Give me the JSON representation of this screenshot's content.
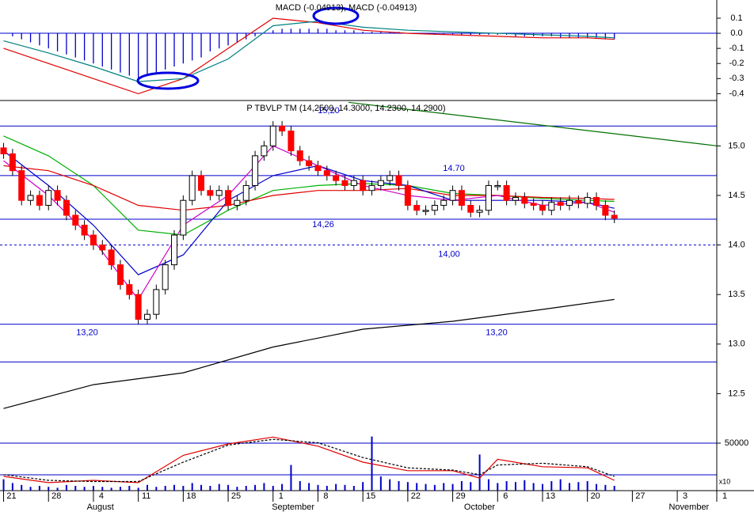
{
  "chart_data": [
    {
      "type": "bar",
      "title": "MACD (-0.04913), MACD (-0.04913)",
      "xlim": [
        -0.4,
        79.4
      ],
      "ylim": [
        -0.44,
        0.21
      ],
      "yticks": [
        0.1,
        {
          "value": 0,
          "label": "0.0"
        },
        -0.1,
        -0.2,
        -0.3,
        -0.4
      ],
      "color": "#0000cc",
      "values": [
        0.0,
        -0.02,
        -0.04,
        -0.06,
        -0.08,
        -0.1,
        -0.12,
        -0.14,
        -0.16,
        -0.18,
        -0.2,
        -0.22,
        -0.24,
        -0.26,
        -0.28,
        -0.3,
        -0.28,
        -0.26,
        -0.24,
        -0.22,
        -0.2,
        -0.18,
        -0.16,
        -0.12,
        -0.1,
        -0.08,
        -0.06,
        -0.04,
        -0.02,
        0.0,
        0.02,
        0.03,
        0.03,
        0.03,
        0.03,
        0.03,
        0.03,
        0.02,
        0.02,
        0.02,
        0.01,
        0.01,
        0.01,
        0.01,
        0.01,
        0.0,
        0.0,
        0.0,
        -0.01,
        -0.01,
        -0.01,
        -0.01,
        -0.01,
        -0.01,
        -0.01,
        -0.01,
        -0.01,
        -0.02,
        -0.02,
        -0.02,
        -0.02,
        -0.02,
        -0.03,
        -0.03,
        -0.03,
        -0.03,
        -0.03,
        -0.04,
        -0.04
      ],
      "series": [
        {
          "color": "#e00000",
          "x": [
            0,
            5,
            10,
            15,
            20,
            25,
            30,
            35,
            40,
            45,
            50,
            55,
            60,
            65,
            68
          ],
          "values": [
            -0.1,
            -0.2,
            -0.3,
            -0.4,
            -0.3,
            -0.1,
            0.1,
            0.07,
            0.02,
            0.0,
            -0.01,
            -0.02,
            -0.03,
            -0.03,
            -0.04
          ]
        },
        {
          "color": "#008080",
          "x": [
            0,
            5,
            10,
            15,
            20,
            25,
            30,
            35,
            40,
            45,
            50,
            55,
            60,
            65,
            68
          ],
          "values": [
            -0.05,
            -0.13,
            -0.22,
            -0.32,
            -0.3,
            -0.17,
            0.05,
            0.08,
            0.04,
            0.02,
            0.01,
            0.0,
            -0.01,
            -0.02,
            -0.03
          ]
        }
      ]
    },
    {
      "type": "candlestick",
      "title": "P TBVLP TM (14,2500, 14.3000, 14.2300, 14.2900)",
      "xlim": [
        -0.4,
        79.4
      ],
      "ylim": [
        12.0,
        15.45
      ],
      "yticks": [
        {
          "value": 15,
          "label": "15.0"
        },
        14.5,
        {
          "value": 14,
          "label": "14.0"
        },
        13.5,
        {
          "value": 13,
          "label": "13.0"
        },
        12.5
      ],
      "up_color": "#ffffff",
      "down_color": "#ff0000",
      "open": [
        14.98,
        14.92,
        14.75,
        14.45,
        14.5,
        14.4,
        14.55,
        14.45,
        14.3,
        14.2,
        14.1,
        14.0,
        13.95,
        13.8,
        13.6,
        13.5,
        13.25,
        13.3,
        13.55,
        13.8,
        14.1,
        14.45,
        14.7,
        14.55,
        14.5,
        14.55,
        14.4,
        14.45,
        14.6,
        14.9,
        15.0,
        15.2,
        15.15,
        14.95,
        14.85,
        14.8,
        14.75,
        14.7,
        14.65,
        14.6,
        14.65,
        14.55,
        14.6,
        14.65,
        14.7,
        14.6,
        14.4,
        14.35,
        14.35,
        14.4,
        14.45,
        14.55,
        14.4,
        14.33,
        14.35,
        14.6,
        14.6,
        14.45,
        14.48,
        14.42,
        14.4,
        14.35,
        14.43,
        14.4,
        14.45,
        14.42,
        14.48,
        14.4,
        14.3
      ],
      "high": [
        15.03,
        14.97,
        14.8,
        14.55,
        14.55,
        14.6,
        14.6,
        14.5,
        14.35,
        14.25,
        14.15,
        14.05,
        14.0,
        13.85,
        13.65,
        13.55,
        13.35,
        13.6,
        13.85,
        14.15,
        14.5,
        14.75,
        14.75,
        14.6,
        14.6,
        14.6,
        14.5,
        14.65,
        14.95,
        15.05,
        15.25,
        15.25,
        15.2,
        15.0,
        14.9,
        14.85,
        14.8,
        14.75,
        14.7,
        14.7,
        14.7,
        14.65,
        14.7,
        14.75,
        14.75,
        14.65,
        14.45,
        14.4,
        14.45,
        14.5,
        14.6,
        14.6,
        14.45,
        14.4,
        14.65,
        14.65,
        14.65,
        14.53,
        14.53,
        14.47,
        14.45,
        14.48,
        14.48,
        14.5,
        14.5,
        14.53,
        14.53,
        14.45,
        14.35
      ],
      "low": [
        14.87,
        14.7,
        14.4,
        14.4,
        14.35,
        14.35,
        14.4,
        14.25,
        14.15,
        14.05,
        13.95,
        13.9,
        13.75,
        13.55,
        13.45,
        13.2,
        13.2,
        13.25,
        13.5,
        13.75,
        14.05,
        14.4,
        14.5,
        14.45,
        14.45,
        14.35,
        14.35,
        14.4,
        14.55,
        14.85,
        14.95,
        15.1,
        14.9,
        14.8,
        14.75,
        14.7,
        14.65,
        14.6,
        14.55,
        14.55,
        14.5,
        14.5,
        14.55,
        14.6,
        14.55,
        14.35,
        14.3,
        14.3,
        14.3,
        14.35,
        14.4,
        14.35,
        14.28,
        14.28,
        14.3,
        14.55,
        14.4,
        14.4,
        14.37,
        14.35,
        14.3,
        14.3,
        14.35,
        14.35,
        14.37,
        14.37,
        14.35,
        14.25,
        14.22
      ],
      "close": [
        14.92,
        14.75,
        14.45,
        14.5,
        14.4,
        14.55,
        14.45,
        14.3,
        14.2,
        14.1,
        14.0,
        13.95,
        13.8,
        13.6,
        13.5,
        13.25,
        13.3,
        13.55,
        13.8,
        14.1,
        14.45,
        14.7,
        14.55,
        14.5,
        14.55,
        14.4,
        14.45,
        14.6,
        14.9,
        15.0,
        15.2,
        15.15,
        14.95,
        14.85,
        14.8,
        14.75,
        14.7,
        14.65,
        14.6,
        14.65,
        14.55,
        14.6,
        14.65,
        14.7,
        14.6,
        14.4,
        14.35,
        14.35,
        14.4,
        14.45,
        14.55,
        14.4,
        14.33,
        14.35,
        14.6,
        14.6,
        14.45,
        14.48,
        14.42,
        14.4,
        14.35,
        14.43,
        14.4,
        14.45,
        14.42,
        14.48,
        14.4,
        14.3,
        14.27
      ],
      "levels": [
        {
          "value": 15.2,
          "labels": [
            "15,20"
          ]
        },
        {
          "value": 14.7,
          "labels": [
            "14.70"
          ]
        },
        {
          "value": 14.26,
          "labels": [
            "14,26"
          ]
        },
        {
          "value": 14.0,
          "labels": [
            "14,00"
          ],
          "dashed": true
        },
        {
          "value": 13.2,
          "labels": [
            "13,20",
            "13,20"
          ]
        },
        {
          "value": 12.82
        }
      ],
      "series": [
        {
          "color": "#000000",
          "x": [
            0,
            10,
            20,
            30,
            40,
            50,
            60,
            68
          ],
          "values": [
            12.35,
            12.59,
            12.71,
            12.97,
            13.15,
            13.23,
            13.35,
            13.45
          ]
        },
        {
          "color": "#00b000",
          "x": [
            0,
            5,
            10,
            15,
            20,
            25,
            30,
            35,
            40,
            45,
            50,
            55,
            60,
            65,
            68
          ],
          "values": [
            15.1,
            14.9,
            14.6,
            14.15,
            14.1,
            14.35,
            14.55,
            14.6,
            14.62,
            14.6,
            14.52,
            14.5,
            14.47,
            14.45,
            14.44
          ]
        },
        {
          "color": "#e00000",
          "x": [
            0,
            5,
            10,
            15,
            20,
            25,
            30,
            35,
            40,
            45,
            50,
            55,
            60,
            65,
            68
          ],
          "values": [
            14.8,
            14.75,
            14.6,
            14.4,
            14.35,
            14.4,
            14.5,
            14.55,
            14.55,
            14.57,
            14.5,
            14.5,
            14.48,
            14.47,
            14.46
          ]
        },
        {
          "color": "#0000cc",
          "x": [
            0,
            5,
            10,
            15,
            20,
            25,
            30,
            35,
            40,
            45,
            50,
            55,
            60,
            65,
            68
          ],
          "values": [
            14.95,
            14.6,
            14.2,
            13.7,
            13.9,
            14.45,
            14.7,
            14.8,
            14.65,
            14.6,
            14.45,
            14.45,
            14.45,
            14.43,
            14.37
          ]
        },
        {
          "color": "#cc00cc",
          "x": [
            0,
            5,
            10,
            15,
            20,
            25,
            30,
            35,
            40,
            45,
            50,
            55,
            60,
            65,
            68
          ],
          "values": [
            14.85,
            14.5,
            14.05,
            13.45,
            14.2,
            14.5,
            15.0,
            14.8,
            14.6,
            14.5,
            14.45,
            14.5,
            14.4,
            14.43,
            14.33
          ]
        },
        {
          "color": "#007000",
          "x": [
            38.4,
            79.4
          ],
          "values": [
            15.44,
            15.0
          ]
        }
      ]
    },
    {
      "type": "bar",
      "unit_label": "x10",
      "xlim": [
        -0.4,
        79.4
      ],
      "ylim": [
        0,
        60000
      ],
      "yticks": [
        50000
      ],
      "grid": true,
      "y2lim": [
        0,
        100
      ],
      "color": "#0000cc",
      "values": [
        12000,
        8000,
        6000,
        4000,
        5000,
        4000,
        3000,
        6000,
        5000,
        4000,
        5000,
        4000,
        3000,
        4000,
        5000,
        3000,
        6000,
        4000,
        5000,
        6000,
        5000,
        8000,
        6000,
        5000,
        7000,
        6000,
        4000,
        5000,
        6000,
        8000,
        5000,
        7000,
        27000,
        10000,
        8000,
        6000,
        5000,
        7000,
        6000,
        5000,
        9000,
        57000,
        15000,
        12000,
        10000,
        9000,
        8000,
        7000,
        6000,
        8000,
        7000,
        10000,
        9000,
        38000,
        12000,
        8000,
        10000,
        9000,
        11000,
        8000,
        7000,
        10000,
        12000,
        8000,
        9000,
        10000,
        7000,
        6000,
        5000
      ],
      "series": [
        {
          "color": "#e00000",
          "axis": "y2",
          "x": [
            0,
            5,
            10,
            15,
            20,
            25,
            30,
            35,
            40,
            45,
            50,
            53,
            55,
            60,
            65,
            68
          ],
          "values": [
            25,
            14,
            18,
            14,
            62,
            82,
            94,
            78,
            50,
            35,
            35,
            22,
            55,
            42,
            40,
            18
          ]
        },
        {
          "color": "#000000",
          "axis": "y2",
          "dashed": true,
          "x": [
            0,
            5,
            10,
            15,
            20,
            25,
            30,
            35,
            40,
            45,
            50,
            53,
            55,
            60,
            65,
            68
          ],
          "values": [
            28,
            18,
            16,
            16,
            50,
            80,
            90,
            84,
            58,
            40,
            36,
            28,
            45,
            48,
            42,
            25
          ]
        }
      ],
      "xticks": [
        {
          "value": 0,
          "label": "21"
        },
        {
          "value": 5,
          "label": "28"
        },
        {
          "value": 10,
          "label": "4"
        },
        {
          "value": 15,
          "label": "11"
        },
        {
          "value": 20,
          "label": "18"
        },
        {
          "value": 25,
          "label": "25"
        },
        {
          "value": 30,
          "label": "1"
        },
        {
          "value": 35,
          "label": "8"
        },
        {
          "value": 40,
          "label": "15"
        },
        {
          "value": 45,
          "label": "22"
        },
        {
          "value": 50,
          "label": "29"
        },
        {
          "value": 55,
          "label": "6"
        },
        {
          "value": 60,
          "label": "13"
        },
        {
          "value": 65,
          "label": "20"
        },
        {
          "value": 70,
          "label": "27"
        },
        {
          "value": 75,
          "label": "3"
        },
        {
          "value": 79.4,
          "label": "1"
        }
      ],
      "months": [
        {
          "value": 9,
          "label": "August"
        },
        {
          "value": 29.6,
          "label": "September"
        },
        {
          "value": 51,
          "label": "October"
        },
        {
          "value": 73.8,
          "label": "November"
        }
      ]
    }
  ]
}
